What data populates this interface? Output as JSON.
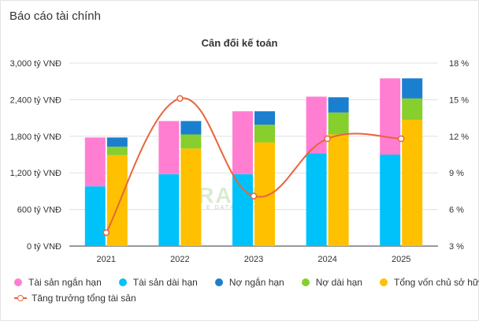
{
  "page": {
    "title": "Báo cáo tài chính"
  },
  "colors": {
    "tai_san_ngan_han": "#ff7ed2",
    "tai_san_dai_han": "#00c2fb",
    "no_ngan_han": "#1b7fcf",
    "no_dai_han": "#86cf2c",
    "tong_von_chu_so_huu": "#ffc000",
    "tang_truong": "#e8643c",
    "grid": "#e0e0e0",
    "axis": "#333333"
  },
  "chart_data": {
    "type": "bar",
    "title": "Cân đối kế toán",
    "categories": [
      "2021",
      "2022",
      "2023",
      "2024",
      "2025"
    ],
    "y_left": {
      "ylim": [
        0,
        3000
      ],
      "ticks": [
        0,
        600,
        1200,
        1800,
        2400,
        3000
      ],
      "tick_labels": [
        "0 tỷ VNĐ",
        "600 tỷ VNĐ",
        "1,200 tỷ VNĐ",
        "1,800 tỷ VNĐ",
        "2,400 tỷ VNĐ",
        "3,000 tỷ VNĐ"
      ]
    },
    "y_right": {
      "ylim": [
        3,
        18
      ],
      "ticks": [
        3,
        6,
        9,
        12,
        15,
        18
      ],
      "tick_labels": [
        "3 %",
        "6 %",
        "9 %",
        "12 %",
        "15 %",
        "18 %"
      ]
    },
    "stacks": [
      {
        "stack": "assets",
        "series": [
          {
            "name": "Tài sản dài hạn",
            "color_key": "tai_san_dai_han",
            "values": [
              980,
              1180,
              1180,
              1520,
              1500
            ]
          },
          {
            "name": "Tài sản ngắn hạn",
            "color_key": "tai_san_ngan_han",
            "values": [
              800,
              870,
              1030,
              930,
              1250
            ]
          }
        ]
      },
      {
        "stack": "capital",
        "series": [
          {
            "name": "Tổng vốn chủ sở hữu",
            "color_key": "tong_von_chu_so_huu",
            "values": [
              1490,
              1600,
              1700,
              1830,
              2070
            ]
          },
          {
            "name": "Nợ dài hạn",
            "color_key": "no_dai_han",
            "values": [
              140,
              230,
              290,
              360,
              350
            ]
          },
          {
            "name": "Nợ ngắn hạn",
            "color_key": "no_ngan_han",
            "values": [
              150,
              220,
              220,
              250,
              330
            ]
          }
        ]
      }
    ],
    "line": {
      "name": "Tăng trưởng tổng tài sản",
      "axis": "right",
      "color_key": "tang_truong",
      "values": [
        4.1,
        15.1,
        7.1,
        11.8,
        11.8
      ]
    },
    "legend_position": "bottom",
    "grid": true
  },
  "legend": {
    "row1": [
      {
        "label": "Tài sản ngắn hạn",
        "color_key": "tai_san_ngan_han"
      },
      {
        "label": "Tài sản dài hạn",
        "color_key": "tai_san_dai_han"
      },
      {
        "label": "Nợ ngắn hạn",
        "color_key": "no_ngan_han"
      },
      {
        "label": "Nợ dài hạn",
        "color_key": "no_dai_han"
      },
      {
        "label": "Tổng vốn chủ sở hữu",
        "color_key": "tong_von_chu_so_huu"
      }
    ],
    "row2": [
      {
        "label": "Tăng trưởng tổng tài sản",
        "color_key": "tang_truong"
      }
    ]
  },
  "watermark": {
    "logo": "TRADE",
    "tagline": "E DATA · INVEST"
  }
}
